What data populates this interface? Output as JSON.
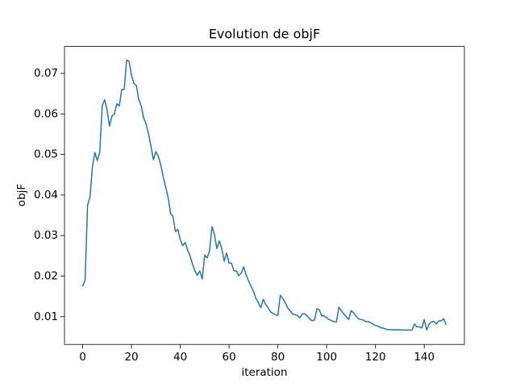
{
  "chart_data": {
    "type": "line",
    "title": "Evolution de objF",
    "x_label": "iteration",
    "y_label": "objF",
    "color": "#1f77b4",
    "grid": false,
    "xlim": [
      -7.45,
      156.45
    ],
    "ylim": [
      0.00316,
      0.07664
    ],
    "xticks": [
      0,
      20,
      40,
      60,
      80,
      100,
      120,
      140
    ],
    "yticks": [
      0.01,
      0.02,
      0.03,
      0.04,
      0.05,
      0.06,
      0.07
    ],
    "x": [
      0,
      1,
      2,
      3,
      4,
      5,
      6,
      7,
      8,
      9,
      10,
      11,
      12,
      13,
      14,
      15,
      16,
      17,
      18,
      19,
      20,
      21,
      22,
      23,
      24,
      25,
      26,
      27,
      28,
      29,
      30,
      31,
      32,
      33,
      34,
      35,
      36,
      37,
      38,
      39,
      40,
      41,
      42,
      43,
      44,
      45,
      46,
      47,
      48,
      49,
      50,
      51,
      52,
      53,
      54,
      55,
      56,
      57,
      58,
      59,
      60,
      61,
      62,
      63,
      64,
      65,
      66,
      67,
      68,
      69,
      70,
      71,
      72,
      73,
      74,
      75,
      76,
      77,
      78,
      79,
      80,
      81,
      82,
      83,
      84,
      85,
      86,
      87,
      88,
      89,
      90,
      91,
      92,
      93,
      94,
      95,
      96,
      97,
      98,
      99,
      100,
      101,
      102,
      103,
      104,
      105,
      106,
      107,
      108,
      109,
      110,
      111,
      112,
      113,
      114,
      115,
      116,
      117,
      118,
      119,
      120,
      121,
      122,
      123,
      124,
      125,
      126,
      127,
      128,
      129,
      130,
      131,
      132,
      133,
      134,
      135,
      136,
      137,
      138,
      139,
      140,
      141,
      142,
      143,
      144,
      145,
      146,
      147,
      148,
      149
    ],
    "values": [
      0.0175,
      0.019,
      0.0375,
      0.0395,
      0.047,
      0.0505,
      0.0485,
      0.0505,
      0.062,
      0.0635,
      0.061,
      0.057,
      0.0595,
      0.06,
      0.0625,
      0.062,
      0.066,
      0.066,
      0.0733,
      0.073,
      0.0695,
      0.0675,
      0.067,
      0.0635,
      0.062,
      0.059,
      0.0575,
      0.055,
      0.052,
      0.0487,
      0.0507,
      0.0495,
      0.0475,
      0.0445,
      0.042,
      0.0395,
      0.0355,
      0.0347,
      0.031,
      0.0315,
      0.029,
      0.0275,
      0.0283,
      0.0265,
      0.025,
      0.023,
      0.0213,
      0.0202,
      0.0213,
      0.0193,
      0.0252,
      0.0245,
      0.0263,
      0.0322,
      0.0303,
      0.0268,
      0.0287,
      0.0268,
      0.0237,
      0.0257,
      0.0232,
      0.0232,
      0.0213,
      0.0213,
      0.0201,
      0.0208,
      0.0223,
      0.0203,
      0.0188,
      0.0175,
      0.0162,
      0.0145,
      0.0135,
      0.0122,
      0.0143,
      0.013,
      0.0122,
      0.0112,
      0.0108,
      0.0105,
      0.0103,
      0.0153,
      0.0145,
      0.0135,
      0.0122,
      0.0115,
      0.0107,
      0.0105,
      0.0103,
      0.0097,
      0.0107,
      0.0107,
      0.0102,
      0.0095,
      0.009,
      0.0092,
      0.012,
      0.0117,
      0.0102,
      0.0102,
      0.0097,
      0.0093,
      0.009,
      0.0088,
      0.0087,
      0.0123,
      0.0115,
      0.0107,
      0.01,
      0.0093,
      0.0115,
      0.011,
      0.0102,
      0.0095,
      0.0093,
      0.0092,
      0.0088,
      0.0088,
      0.0085,
      0.0082,
      0.0078,
      0.0077,
      0.0073,
      0.0072,
      0.007,
      0.0068,
      0.0068,
      0.0068,
      0.0067,
      0.0068,
      0.0068,
      0.0067,
      0.0067,
      0.0067,
      0.0067,
      0.0067,
      0.0082,
      0.0075,
      0.0075,
      0.0072,
      0.0093,
      0.0067,
      0.0082,
      0.0087,
      0.0088,
      0.0082,
      0.009,
      0.009,
      0.0095,
      0.008
    ]
  }
}
